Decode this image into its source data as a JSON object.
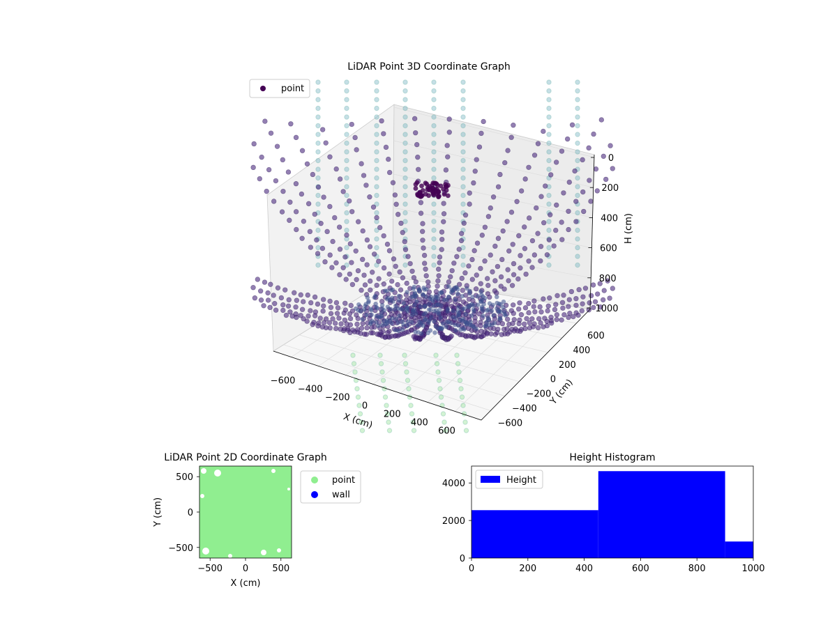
{
  "chart_data": [
    {
      "type": "scatter",
      "projection": "3d",
      "title": "LiDAR Point 3D Coordinate Graph",
      "xlabel": "X (cm)",
      "ylabel": "Y (cm)",
      "zlabel": "H (cm)",
      "xlim": [
        -650,
        650
      ],
      "ylim": [
        -650,
        650
      ],
      "zlim": [
        1000,
        0
      ],
      "x_ticks": [
        "−600",
        "−400",
        "−200",
        "0",
        "200",
        "400",
        "600"
      ],
      "y_ticks": [
        "−600",
        "−400",
        "−200",
        "0",
        "200",
        "400",
        "600"
      ],
      "z_ticks": [
        "0",
        "200",
        "400",
        "600",
        "800",
        "1000"
      ],
      "legend": [
        {
          "name": "point",
          "color": "#440154"
        }
      ],
      "legend_position": "top-left",
      "grid": true,
      "colormap": "viridis",
      "description_points": "Dense LiDAR rings radiating from the center, curving upward toward the top of the box; sparse green/cyan column points outside."
    },
    {
      "type": "scatter",
      "title": "LiDAR Point 2D Coordinate Graph",
      "xlabel": "X (cm)",
      "ylabel": "Y (cm)",
      "xlim": [
        -650,
        650
      ],
      "ylim": [
        -650,
        650
      ],
      "x_ticks": [
        "−500",
        "0",
        "500"
      ],
      "y_ticks": [
        "500",
        "0",
        "−500"
      ],
      "legend": [
        {
          "name": "point",
          "color": "#90ee90"
        },
        {
          "name": "wall",
          "color": "#0000ff"
        }
      ],
      "legend_position": "outside-right",
      "fill_color": "#90ee90"
    },
    {
      "type": "bar",
      "title": "Height Histogram",
      "bins": [
        [
          0,
          450
        ],
        [
          450,
          900
        ],
        [
          900,
          1000
        ]
      ],
      "values": [
        2550,
        4630,
        880
      ],
      "xlim": [
        0,
        1000
      ],
      "ylim": [
        0,
        4900
      ],
      "x_ticks": [
        "0",
        "200",
        "400",
        "600",
        "800",
        "1000"
      ],
      "y_ticks": [
        "0",
        "2000",
        "4000"
      ],
      "legend": [
        {
          "name": "Height",
          "color": "#0000ff"
        }
      ],
      "legend_position": "top-left",
      "color": "#0000ff"
    }
  ]
}
